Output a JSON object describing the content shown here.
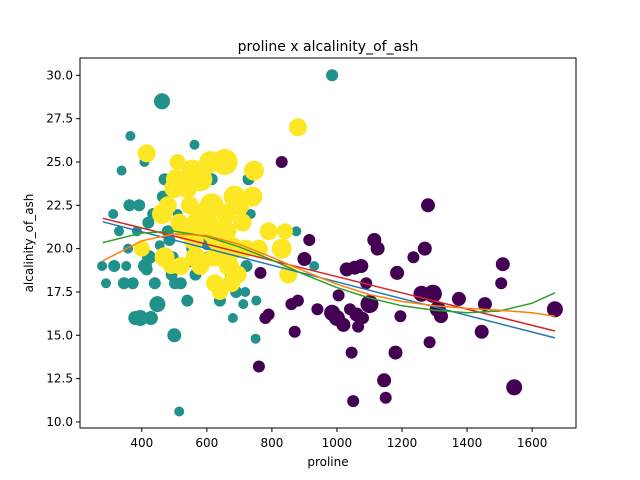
{
  "chart_data": {
    "type": "scatter",
    "title": "proline x alcalinity_of_ash",
    "xlabel": "proline",
    "ylabel": "alcalinity_of_ash",
    "xlim": [
      210,
      1735
    ],
    "ylim": [
      9.65,
      31.0
    ],
    "xticks": [
      400,
      600,
      800,
      1000,
      1200,
      1400,
      1600
    ],
    "xtick_labels": [
      "400",
      "600",
      "800",
      "1000",
      "1200",
      "1400",
      "1600"
    ],
    "yticks": [
      10.0,
      12.5,
      15.0,
      17.5,
      20.0,
      22.5,
      25.0,
      27.5,
      30.0
    ],
    "ytick_labels": [
      "10.0",
      "12.5",
      "15.0",
      "17.5",
      "20.0",
      "22.5",
      "25.0",
      "27.5",
      "30.0"
    ],
    "grid": false,
    "series": [
      {
        "color": "#440154",
        "points": [
          [
            830,
            25.0
          ],
          [
            860,
            16.8
          ],
          [
            880,
            17.0
          ],
          [
            900,
            19.4
          ],
          [
            915,
            20.5
          ],
          [
            940,
            16.5
          ],
          [
            985,
            16.3
          ],
          [
            1000,
            16.0
          ],
          [
            1005,
            17.3
          ],
          [
            1020,
            15.6
          ],
          [
            1030,
            18.8
          ],
          [
            1040,
            16.5
          ],
          [
            1045,
            14.0
          ],
          [
            1050,
            11.2
          ],
          [
            1055,
            18.9
          ],
          [
            1060,
            16.2
          ],
          [
            1065,
            15.5
          ],
          [
            1075,
            19.0
          ],
          [
            1080,
            16.0
          ],
          [
            1090,
            18.0
          ],
          [
            1115,
            20.5
          ],
          [
            1125,
            20.0
          ],
          [
            1145,
            12.4
          ],
          [
            1150,
            11.4
          ],
          [
            1180,
            14.0
          ],
          [
            1185,
            18.6
          ],
          [
            1195,
            16.1
          ],
          [
            1235,
            19.5
          ],
          [
            1260,
            17.4
          ],
          [
            1270,
            20.0
          ],
          [
            1280,
            22.5
          ],
          [
            1285,
            14.6
          ],
          [
            1295,
            17.4
          ],
          [
            1310,
            16.5
          ],
          [
            1320,
            16.1
          ],
          [
            1375,
            17.1
          ],
          [
            1445,
            15.2
          ],
          [
            1455,
            16.8
          ],
          [
            1505,
            18.0
          ],
          [
            1510,
            19.1
          ],
          [
            1545,
            12.0
          ],
          [
            1670,
            16.5
          ],
          [
            780,
            16.0
          ],
          [
            760,
            13.2
          ],
          [
            790,
            16.2
          ],
          [
            870,
            15.2
          ],
          [
            765,
            18.6
          ],
          [
            1100,
            16.8
          ],
          [
            990,
            16.2
          ]
        ],
        "sizes": [
          6,
          6,
          6,
          7,
          6,
          6,
          8,
          8,
          6,
          7,
          7,
          6,
          6,
          6,
          7,
          7,
          6,
          7,
          6,
          6,
          7,
          7,
          7,
          6,
          7,
          7,
          6,
          6,
          8,
          7,
          7,
          6,
          9,
          8,
          7,
          7,
          7,
          7,
          6,
          7,
          8,
          8,
          6,
          6,
          6,
          6,
          6,
          9,
          7
        ]
      },
      {
        "color": "#21918c",
        "points": [
          [
            278,
            19.0
          ],
          [
            290,
            18.0
          ],
          [
            312,
            22.0
          ],
          [
            315,
            19.0
          ],
          [
            330,
            21.0
          ],
          [
            338,
            24.5
          ],
          [
            345,
            18.0
          ],
          [
            352,
            19.0
          ],
          [
            358,
            20.0
          ],
          [
            362,
            22.5
          ],
          [
            365,
            26.5
          ],
          [
            372,
            18.0
          ],
          [
            380,
            16.0
          ],
          [
            385,
            21.0
          ],
          [
            392,
            22.5
          ],
          [
            395,
            16.0
          ],
          [
            400,
            20.0
          ],
          [
            408,
            25.0
          ],
          [
            410,
            19.0
          ],
          [
            415,
            18.8
          ],
          [
            420,
            21.5
          ],
          [
            422,
            19.5
          ],
          [
            428,
            16.0
          ],
          [
            435,
            22.0
          ],
          [
            440,
            18.0
          ],
          [
            448,
            16.8
          ],
          [
            455,
            20.2
          ],
          [
            462,
            28.5
          ],
          [
            465,
            23.0
          ],
          [
            470,
            24.0
          ],
          [
            480,
            21.0
          ],
          [
            485,
            20.5
          ],
          [
            492,
            18.5
          ],
          [
            495,
            19.5
          ],
          [
            500,
            15.0
          ],
          [
            502,
            18.0
          ],
          [
            505,
            21.5
          ],
          [
            510,
            22.0
          ],
          [
            515,
            10.6
          ],
          [
            520,
            18.0
          ],
          [
            525,
            19.0
          ],
          [
            540,
            17.0
          ],
          [
            545,
            19.2
          ],
          [
            555,
            20.0
          ],
          [
            562,
            26.0
          ],
          [
            565,
            18.5
          ],
          [
            570,
            22.0
          ],
          [
            580,
            20.5
          ],
          [
            590,
            21.0
          ],
          [
            600,
            20.2
          ],
          [
            605,
            19.5
          ],
          [
            615,
            24.0
          ],
          [
            625,
            22.5
          ],
          [
            630,
            21.0
          ],
          [
            640,
            17.0
          ],
          [
            650,
            19.5
          ],
          [
            660,
            20.0
          ],
          [
            665,
            19.0
          ],
          [
            670,
            20.5
          ],
          [
            675,
            18.5
          ],
          [
            680,
            16.0
          ],
          [
            690,
            17.5
          ],
          [
            700,
            20.0
          ],
          [
            712,
            16.8
          ],
          [
            718,
            17.5
          ],
          [
            722,
            19.0
          ],
          [
            728,
            24.0
          ],
          [
            735,
            22.0
          ],
          [
            740,
            20.0
          ],
          [
            750,
            14.8
          ],
          [
            752,
            17.0
          ],
          [
            770,
            20.0
          ],
          [
            838,
            20.0
          ],
          [
            875,
            21.0
          ],
          [
            930,
            19.0
          ],
          [
            985,
            30.0
          ]
        ],
        "sizes": [
          5,
          5,
          5,
          6,
          5,
          5,
          6,
          5,
          5,
          6,
          5,
          6,
          7,
          5,
          6,
          8,
          6,
          5,
          7,
          6,
          6,
          7,
          7,
          6,
          6,
          8,
          5,
          8,
          6,
          6,
          6,
          6,
          6,
          6,
          7,
          6,
          5,
          5,
          5,
          6,
          6,
          6,
          5,
          6,
          5,
          6,
          6,
          5,
          6,
          5,
          6,
          6,
          5,
          6,
          6,
          6,
          5,
          6,
          5,
          6,
          5,
          6,
          6,
          5,
          5,
          6,
          6,
          5,
          6,
          5,
          5,
          5,
          6,
          5,
          5,
          6
        ]
      },
      {
        "color": "#fde725",
        "points": [
          [
            400,
            20.0
          ],
          [
            415,
            25.5
          ],
          [
            462,
            22.0
          ],
          [
            470,
            19.5
          ],
          [
            480,
            22.5
          ],
          [
            490,
            19.0
          ],
          [
            500,
            23.5
          ],
          [
            505,
            24.0
          ],
          [
            510,
            25.0
          ],
          [
            515,
            21.5
          ],
          [
            520,
            19.0
          ],
          [
            530,
            21.0
          ],
          [
            540,
            23.5
          ],
          [
            548,
            22.5
          ],
          [
            555,
            24.5
          ],
          [
            560,
            20.5
          ],
          [
            565,
            19.5
          ],
          [
            575,
            21.5
          ],
          [
            580,
            24.0
          ],
          [
            590,
            22.0
          ],
          [
            600,
            21.5
          ],
          [
            610,
            25.0
          ],
          [
            615,
            22.5
          ],
          [
            620,
            21.0
          ],
          [
            625,
            18.0
          ],
          [
            630,
            20.5
          ],
          [
            640,
            17.5
          ],
          [
            645,
            19.5
          ],
          [
            655,
            25.0
          ],
          [
            660,
            21.0
          ],
          [
            668,
            19.0
          ],
          [
            675,
            18.0
          ],
          [
            680,
            20.0
          ],
          [
            685,
            23.0
          ],
          [
            695,
            18.5
          ],
          [
            700,
            22.5
          ],
          [
            710,
            21.5
          ],
          [
            720,
            20.0
          ],
          [
            740,
            23.0
          ],
          [
            745,
            24.5
          ],
          [
            760,
            20.0
          ],
          [
            790,
            21.0
          ],
          [
            830,
            20.0
          ],
          [
            840,
            21.0
          ],
          [
            850,
            18.5
          ],
          [
            880,
            27.0
          ],
          [
            620,
            19.5
          ],
          [
            660,
            22.0
          ],
          [
            580,
            19.0
          ],
          [
            530,
            23.8
          ]
        ],
        "sizes": [
          8,
          9,
          10,
          10,
          9,
          8,
          10,
          10,
          8,
          9,
          9,
          9,
          10,
          9,
          11,
          10,
          10,
          12,
          12,
          11,
          11,
          11,
          12,
          12,
          9,
          10,
          8,
          10,
          13,
          10,
          10,
          9,
          11,
          11,
          9,
          10,
          9,
          9,
          10,
          10,
          9,
          9,
          10,
          8,
          9,
          9,
          9,
          10,
          9,
          9
        ]
      }
    ],
    "fit_lines": [
      {
        "color": "#1f77b4",
        "x": [
          280,
          1670
        ],
        "y": [
          21.55,
          14.85
        ]
      },
      {
        "color": "#d62728",
        "x": [
          280,
          1670
        ],
        "y": [
          21.75,
          15.25
        ]
      },
      {
        "color": "#2ca02c",
        "x": [
          280,
          400,
          500,
          600,
          700,
          800,
          900,
          1000,
          1100,
          1200,
          1300,
          1400,
          1500,
          1600,
          1670
        ],
        "y": [
          20.35,
          20.9,
          21.0,
          20.7,
          20.1,
          19.35,
          18.5,
          17.75,
          17.15,
          16.7,
          16.45,
          16.3,
          16.4,
          16.85,
          17.45
        ]
      },
      {
        "color": "#ff7f0e",
        "x": [
          280,
          400,
          500,
          600,
          700,
          800,
          900,
          1000,
          1100,
          1200,
          1300,
          1400,
          1500,
          1600,
          1670
        ],
        "y": [
          19.3,
          20.45,
          20.85,
          20.75,
          20.25,
          19.5,
          18.7,
          17.95,
          17.35,
          16.95,
          16.7,
          16.55,
          16.45,
          16.3,
          16.1
        ]
      }
    ]
  }
}
